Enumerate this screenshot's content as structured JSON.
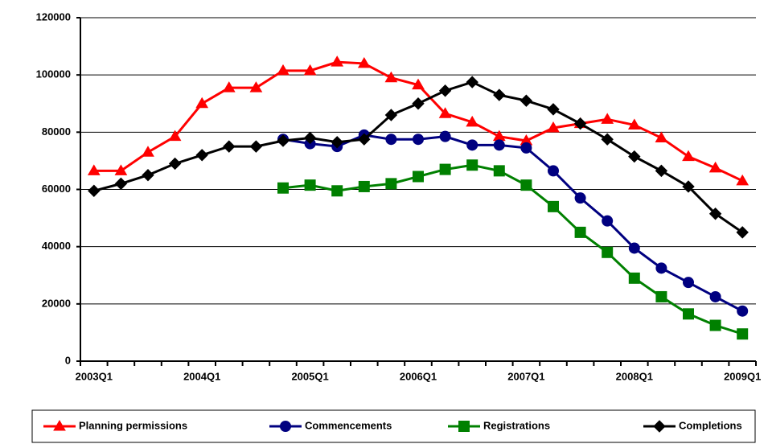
{
  "chart_data": {
    "type": "line",
    "categories": [
      "2003Q1",
      null,
      null,
      null,
      "2004Q1",
      null,
      null,
      null,
      "2005Q1",
      null,
      null,
      null,
      "2006Q1",
      null,
      null,
      null,
      "2007Q1",
      null,
      null,
      null,
      "2008Q1",
      null,
      null,
      null,
      "2009Q1"
    ],
    "series": [
      {
        "name": "Planning permissions",
        "color": "#ff0000",
        "marker": "triangle",
        "values": [
          66500,
          66500,
          73000,
          78500,
          90000,
          95500,
          95500,
          101500,
          101500,
          104500,
          104000,
          99000,
          96500,
          86500,
          83500,
          78500,
          77000,
          81500,
          83000,
          84500,
          82500,
          78000,
          71500,
          67500,
          63000
        ]
      },
      {
        "name": "Commencements",
        "color": "#000080",
        "marker": "circle",
        "values": [
          null,
          null,
          null,
          null,
          null,
          null,
          null,
          77500,
          76000,
          75000,
          79000,
          77500,
          77500,
          78500,
          75500,
          75500,
          74500,
          66500,
          57000,
          49000,
          39500,
          32500,
          27500,
          22500,
          17500
        ]
      },
      {
        "name": "Registrations",
        "color": "#008000",
        "marker": "square",
        "values": [
          null,
          null,
          null,
          null,
          null,
          null,
          null,
          60500,
          61500,
          59500,
          61000,
          62000,
          64500,
          67000,
          68500,
          66500,
          61500,
          54000,
          45000,
          38000,
          29000,
          22500,
          16500,
          12500,
          9500
        ]
      },
      {
        "name": "Completions",
        "color": "#000000",
        "marker": "diamond",
        "values": [
          59500,
          62000,
          65000,
          69000,
          72000,
          75000,
          75000,
          77000,
          78000,
          76500,
          77500,
          86000,
          90000,
          94500,
          97500,
          93000,
          91000,
          88000,
          83000,
          77500,
          71500,
          66500,
          61000,
          51500,
          45000
        ]
      }
    ],
    "ylim": [
      0,
      120000
    ],
    "yticks": [
      0,
      20000,
      40000,
      60000,
      80000,
      100000,
      120000
    ],
    "grid": true,
    "legend": "bottom"
  }
}
